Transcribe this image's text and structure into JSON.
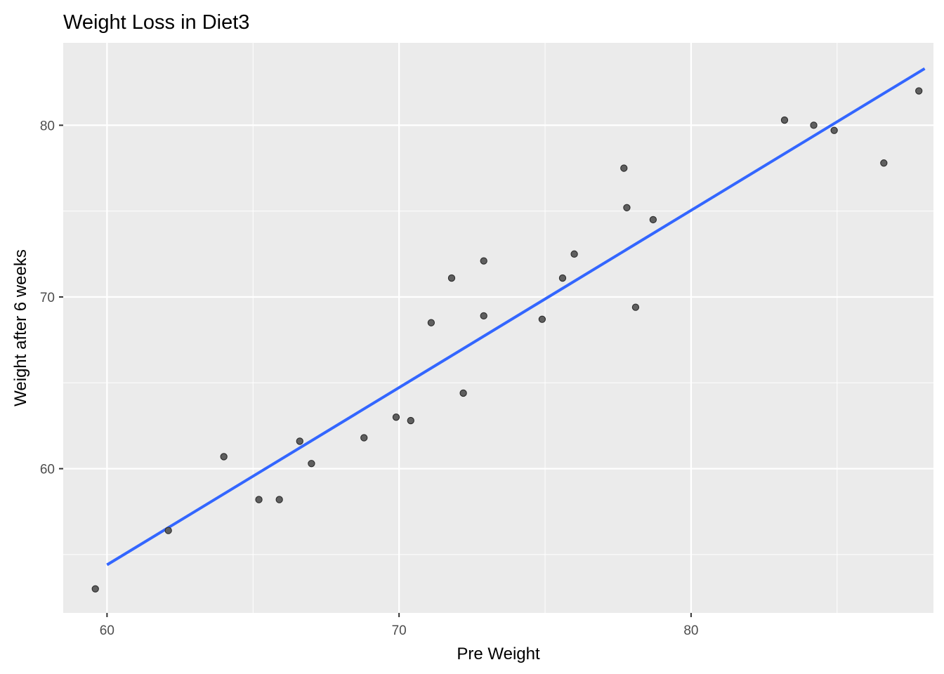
{
  "chart_data": {
    "type": "scatter",
    "title": "Weight Loss in Diet3",
    "xlabel": "Pre Weight",
    "ylabel": "Weight after 6 weeks",
    "xlim": [
      58.5,
      88.3
    ],
    "ylim": [
      51.6,
      84.8
    ],
    "x_ticks": [
      60,
      70,
      80
    ],
    "y_ticks": [
      60,
      70,
      80
    ],
    "x_tick_labels": [
      "60",
      "70",
      "80"
    ],
    "y_tick_labels": [
      "60",
      "70",
      "80"
    ],
    "grid": true,
    "points": [
      {
        "x": 59.6,
        "y": 53.0
      },
      {
        "x": 62.1,
        "y": 56.4
      },
      {
        "x": 64.0,
        "y": 60.7
      },
      {
        "x": 65.2,
        "y": 58.2
      },
      {
        "x": 65.9,
        "y": 58.2
      },
      {
        "x": 66.6,
        "y": 61.6
      },
      {
        "x": 67.0,
        "y": 60.3
      },
      {
        "x": 68.8,
        "y": 61.8
      },
      {
        "x": 69.9,
        "y": 63.0
      },
      {
        "x": 70.4,
        "y": 62.8
      },
      {
        "x": 71.1,
        "y": 68.5
      },
      {
        "x": 71.8,
        "y": 71.1
      },
      {
        "x": 72.2,
        "y": 64.4
      },
      {
        "x": 72.9,
        "y": 72.1
      },
      {
        "x": 72.9,
        "y": 68.9
      },
      {
        "x": 74.9,
        "y": 68.7
      },
      {
        "x": 75.6,
        "y": 71.1
      },
      {
        "x": 76.0,
        "y": 72.5
      },
      {
        "x": 77.7,
        "y": 77.5
      },
      {
        "x": 77.8,
        "y": 75.2
      },
      {
        "x": 78.1,
        "y": 69.4
      },
      {
        "x": 78.7,
        "y": 74.5
      },
      {
        "x": 83.2,
        "y": 80.3
      },
      {
        "x": 84.2,
        "y": 80.0
      },
      {
        "x": 84.9,
        "y": 79.7
      },
      {
        "x": 86.6,
        "y": 77.8
      },
      {
        "x": 87.8,
        "y": 82.0
      }
    ],
    "fit_line": {
      "x": [
        60.0,
        88.0
      ],
      "y": [
        54.4,
        83.3
      ]
    },
    "colors": {
      "panel": "#ebebeb",
      "grid": "#ffffff",
      "point_fill": "#5f5f5f",
      "point_stroke": "#2b2b2b",
      "fit_line": "#3366ff"
    }
  }
}
